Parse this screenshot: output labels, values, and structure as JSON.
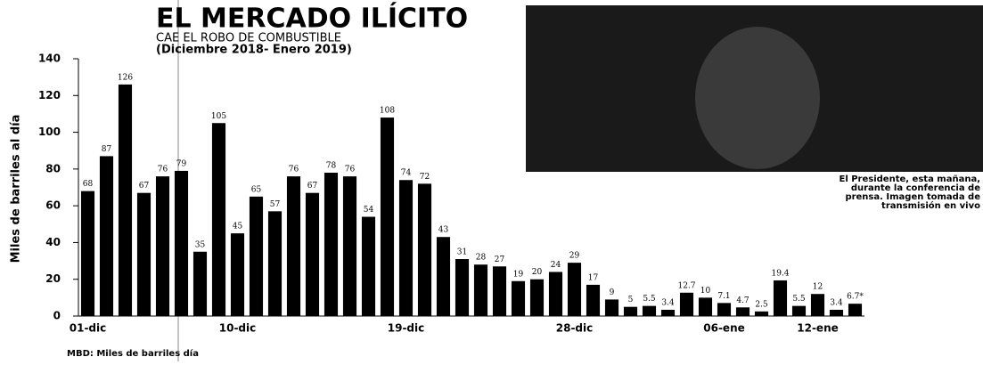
{
  "chart_data": {
    "type": "bar",
    "title": "EL MERCADO ILÍCITO",
    "subtitle": "CAE EL ROBO DE COMBUSTIBLE",
    "period": "(Diciembre 2018- Enero 2019)",
    "ylabel": "Miles de barriles al día",
    "note": "MBD: Miles de barriles día",
    "caption": [
      "El Presidente, esta mañana,",
      "durante la conferencia de",
      "prensa. Imagen tomada de",
      "transmisión en vivo"
    ],
    "color": "#000000",
    "categories": [
      "01-dic",
      null,
      null,
      null,
      null,
      null,
      null,
      null,
      "10-dic",
      null,
      null,
      null,
      null,
      null,
      null,
      null,
      null,
      "19-dic",
      null,
      null,
      null,
      null,
      null,
      null,
      null,
      null,
      "28-dic",
      null,
      null,
      null,
      null,
      null,
      null,
      null,
      "06-ene",
      null,
      null,
      null,
      null,
      "12-ene",
      null,
      null
    ],
    "values": [
      68,
      87,
      126,
      67,
      76,
      79,
      35,
      105,
      45,
      65,
      57,
      76,
      67,
      78,
      76,
      54,
      108,
      74,
      72,
      43,
      31,
      28,
      27,
      19,
      20,
      24,
      29,
      17,
      9,
      5,
      5.5,
      3.4,
      12.7,
      10,
      7.1,
      4.7,
      2.5,
      19.4,
      5.5,
      12,
      3.4,
      6.7
    ],
    "value_labels": [
      "68",
      "87",
      "126",
      "67",
      "76",
      "79",
      "35",
      "105",
      "45",
      "65",
      "57",
      "76",
      "67",
      "78",
      "76",
      "54",
      "108",
      "74",
      "72",
      "43",
      "31",
      "28",
      "27",
      "19",
      "20",
      "24",
      "29",
      "17",
      "9",
      "5",
      "5.5",
      "3.4",
      "12.7",
      "10",
      "7.1",
      "4.7",
      "2.5",
      "19.4",
      "5.5",
      "12",
      "3.4",
      "6.7*"
    ],
    "ylim": [
      0,
      140
    ],
    "yticks": [
      0,
      20,
      40,
      60,
      80,
      100,
      120,
      140
    ]
  }
}
